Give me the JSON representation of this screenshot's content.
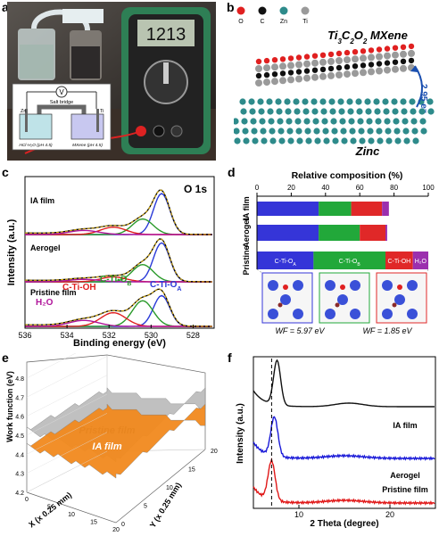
{
  "panel_labels": {
    "a": "a",
    "b": "b",
    "c": "c",
    "d": "d",
    "e": "e",
    "f": "f"
  },
  "panel_a": {
    "meter_display": "1213",
    "inset": {
      "voltmeter": "V",
      "salt_bridge": "Salt bridge",
      "left_electrode": "Zn",
      "right_electrode": "Ti",
      "left_cell": "HCl-H₂O (pH 4.5)",
      "right_cell": "MXene (pH 4.5)"
    }
  },
  "panel_b": {
    "legend": [
      {
        "label": "O",
        "color": "#e02020"
      },
      {
        "label": "C",
        "color": "#111111"
      },
      {
        "label": "Zn",
        "color": "#2e8b8b"
      },
      {
        "label": "Ti",
        "color": "#9a9a9a"
      }
    ],
    "title_parts": {
      "ti": "Ti",
      "s1": "3",
      "c": "C",
      "s2": "2",
      "o": "O",
      "s3": "2",
      "rest": " MXene"
    },
    "electrons": "2.95 e⁻",
    "substrate": "Zinc"
  },
  "panel_d_text": {
    "wf_left": "WF = 5.97 eV",
    "wf_right": "WF = 1.85 eV"
  },
  "chart_data": [
    {
      "id": "c",
      "type": "line",
      "title": "O 1s",
      "xlabel": "Binding energy (eV)",
      "ylabel": "Intensity (a.u.)",
      "xlim": [
        536,
        527
      ],
      "xticks": [
        536,
        534,
        532,
        530,
        528
      ],
      "samples": [
        "IA film",
        "Aerogel",
        "Pristine film"
      ],
      "peak_labels": [
        {
          "text": "H₂O",
          "x": 533.4,
          "color": "#b0149a"
        },
        {
          "text": "C-Ti-OH",
          "x": 531.7,
          "color": "#e02020"
        },
        {
          "text": "C-Ti-O",
          "sub": "B",
          "x": 530.4,
          "color": "#2a9a2a"
        },
        {
          "text": "C-Ti-O",
          "sub": "A",
          "x": 528.7,
          "color": "#2a3ad8"
        }
      ],
      "components": [
        {
          "name": "C-Ti-OA",
          "center": 529.5,
          "color": "#2a3ad8"
        },
        {
          "name": "C-Ti-OB",
          "center": 530.4,
          "color": "#2a9a2a"
        },
        {
          "name": "C-Ti-OH",
          "center": 531.8,
          "color": "#e02020"
        },
        {
          "name": "H2O",
          "center": 533.2,
          "color": "#b0149a"
        }
      ],
      "amplitudes": {
        "IA film": [
          1.0,
          0.38,
          0.18,
          0.1
        ],
        "Aerogel": [
          0.95,
          0.42,
          0.12,
          0.06
        ],
        "Pristine film": [
          0.72,
          0.6,
          0.32,
          0.14
        ]
      }
    },
    {
      "id": "d",
      "type": "bar",
      "title": "Relative composition (%)",
      "xlim": [
        0,
        100
      ],
      "xticks": [
        0,
        20,
        40,
        60,
        80,
        100
      ],
      "categories": [
        "IA film",
        "Aerogel",
        "Pristine"
      ],
      "series": [
        {
          "name": "C-Ti-OA",
          "label": "C-Ti-O",
          "sub": "A",
          "color": "#3535d8",
          "values": [
            36,
            36,
            33
          ]
        },
        {
          "name": "C-Ti-OB",
          "label": "C-Ti-O",
          "sub": "B",
          "color": "#22a83a",
          "values": [
            19,
            24,
            42
          ]
        },
        {
          "name": "C-Ti-OH",
          "label": "C-Ti-OH",
          "sub": "",
          "color": "#e02828",
          "values": [
            18,
            15,
            16
          ]
        },
        {
          "name": "H2O",
          "label": "H₂O",
          "sub": "",
          "color": "#9b2fae",
          "values": [
            4,
            1,
            9
          ]
        }
      ]
    },
    {
      "id": "e",
      "type": "area",
      "xlabel": "X (x 0.25 mm)",
      "ylabel": "Y (x 0.25 mm)",
      "zlabel": "Work function (eV)",
      "zticks": [
        4.2,
        4.3,
        4.4,
        4.5,
        4.6,
        4.7,
        4.8
      ],
      "xticks": [
        0,
        5,
        10,
        15,
        20
      ],
      "yticks": [
        0,
        5,
        10,
        15,
        20
      ],
      "surfaces": [
        {
          "name": "Pristine film",
          "level": 4.55,
          "color": "#bdbdbd"
        },
        {
          "name": "IA film",
          "level": 4.45,
          "color": "#f28a1e"
        }
      ]
    },
    {
      "id": "f",
      "type": "line",
      "xlabel": "2 Theta (degree)",
      "ylabel": "Intensity (a.u.)",
      "xlim": [
        5,
        25
      ],
      "xticks": [
        10,
        20
      ],
      "series": [
        {
          "name": "IA film",
          "color": "#111111",
          "peak": 7.6
        },
        {
          "name": "Aerogel",
          "color": "#1a1ad8",
          "peak": 7.3
        },
        {
          "name": "Pristine film",
          "color": "#e01818",
          "peak": 7.0
        }
      ],
      "reference_x": 7.0
    }
  ]
}
